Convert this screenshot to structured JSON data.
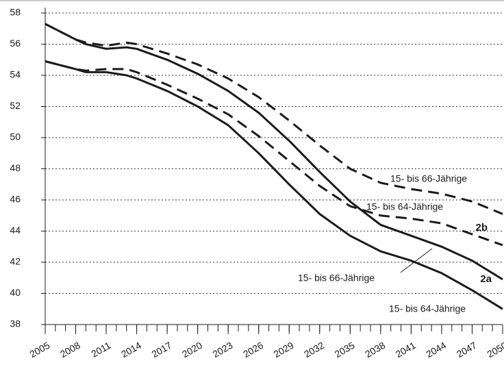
{
  "chart_data": {
    "type": "line",
    "x": [
      2005,
      2008,
      2009,
      2011,
      2013,
      2014,
      2017,
      2020,
      2023,
      2026,
      2029,
      2032,
      2035,
      2038,
      2041,
      2044,
      2047,
      2050
    ],
    "series": [
      {
        "style": "solid",
        "color": "#1a1a1a",
        "values": [
          54.9,
          54.4,
          54.2,
          54.2,
          54.0,
          53.8,
          53.0,
          52.0,
          50.8,
          49.0,
          47.0,
          45.1,
          43.7,
          42.7,
          42.1,
          41.3,
          40.2,
          39.0
        ]
      },
      {
        "style": "solid",
        "color": "#1a1a1a",
        "values": [
          57.3,
          56.3,
          56.0,
          55.7,
          55.8,
          55.7,
          55.0,
          54.1,
          53.0,
          51.6,
          49.8,
          47.8,
          45.9,
          44.4,
          43.7,
          43.0,
          42.1,
          40.9
        ]
      },
      {
        "style": "dashed",
        "color": "#1a1a1a",
        "values": [
          54.9,
          54.4,
          54.3,
          54.4,
          54.4,
          54.2,
          53.4,
          52.5,
          51.5,
          50.1,
          48.5,
          46.9,
          45.6,
          45.0,
          44.8,
          44.5,
          43.8,
          43.1
        ]
      },
      {
        "style": "dashed",
        "color": "#1a1a1a",
        "values": [
          57.3,
          56.3,
          56.1,
          55.9,
          56.1,
          56.0,
          55.4,
          54.7,
          53.8,
          52.6,
          51.1,
          49.5,
          48.0,
          47.1,
          46.7,
          46.4,
          45.9,
          45.1
        ]
      }
    ],
    "annotations": [
      "15- bis 66-Jährige",
      "15- bis 64-Jährige",
      "2b",
      "15- bis 66-Jährige",
      "2a",
      "15- bis 64-Jährige"
    ],
    "xlim": [
      2005,
      2050
    ],
    "xticks": [
      2005,
      2008,
      2011,
      2014,
      2017,
      2020,
      2023,
      2026,
      2029,
      2032,
      2035,
      2038,
      2041,
      2044,
      2047,
      2050
    ],
    "ylim": [
      38,
      58
    ],
    "yticks": [
      38,
      40,
      42,
      44,
      46,
      48,
      50,
      52,
      54,
      56,
      58
    ],
    "grid": true
  }
}
